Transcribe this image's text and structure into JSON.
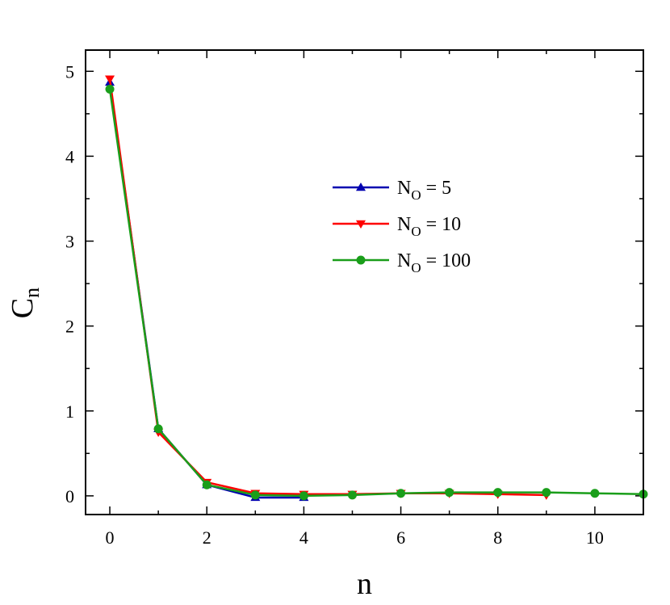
{
  "chart_data": {
    "type": "line",
    "title": "",
    "xlabel": "n",
    "ylabel": {
      "main": "C",
      "sub": "n"
    },
    "xlim": [
      -0.5,
      11
    ],
    "ylim": [
      -0.22,
      5.25
    ],
    "xticks": [
      0,
      2,
      4,
      6,
      8,
      10
    ],
    "yticks": [
      0,
      1,
      2,
      3,
      4,
      5
    ],
    "grid": false,
    "legend": {
      "placement": "center-right"
    },
    "series": [
      {
        "name": {
          "main": "N",
          "sub": "O",
          "suffix": " = 5"
        },
        "color": "#0000b0",
        "marker": "triangle-up",
        "x": [
          0,
          1,
          2,
          3,
          4
        ],
        "y": [
          4.87,
          0.79,
          0.13,
          -0.02,
          -0.02
        ]
      },
      {
        "name": {
          "main": "N",
          "sub": "O",
          "suffix": " = 10"
        },
        "color": "#ff0000",
        "marker": "triangle-down",
        "x": [
          0,
          1,
          2,
          3,
          4,
          5,
          6,
          7,
          8,
          9
        ],
        "y": [
          4.91,
          0.75,
          0.16,
          0.03,
          0.02,
          0.02,
          0.03,
          0.03,
          0.02,
          0.01
        ]
      },
      {
        "name": {
          "main": "N",
          "sub": "O",
          "suffix": " = 100"
        },
        "color": "#1a9e1a",
        "marker": "circle",
        "x": [
          0,
          1,
          2,
          3,
          4,
          5,
          6,
          7,
          8,
          9,
          10,
          11
        ],
        "y": [
          4.79,
          0.79,
          0.13,
          0.01,
          0.0,
          0.01,
          0.03,
          0.04,
          0.04,
          0.04,
          0.03,
          0.02
        ]
      }
    ]
  }
}
